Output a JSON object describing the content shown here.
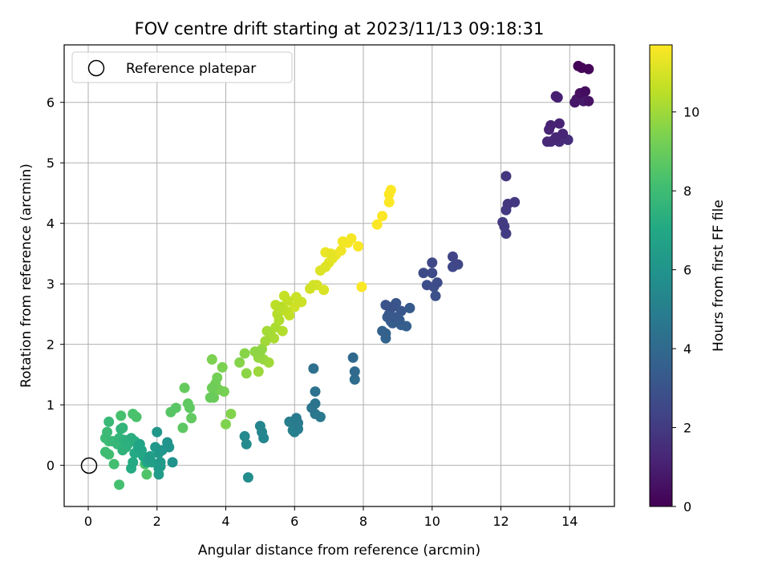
{
  "chart_data": {
    "type": "scatter",
    "title": "FOV centre drift starting at 2023/11/13 09:18:31",
    "xlabel": "Angular distance from reference (arcmin)",
    "ylabel": "Rotation from reference (arcmin)",
    "xlim": [
      -0.7,
      15.3
    ],
    "ylim": [
      -0.68,
      6.95
    ],
    "xticks": [
      0,
      2,
      4,
      6,
      8,
      10,
      12,
      14
    ],
    "yticks": [
      0,
      1,
      2,
      3,
      4,
      5,
      6
    ],
    "grid": true,
    "legend": {
      "location": "upper-left",
      "entries": [
        "Reference platepar"
      ]
    },
    "reference_point": {
      "x": 0,
      "y": 0,
      "marker": "open-circle"
    },
    "colorbar": {
      "label": "Hours from first FF file",
      "colormap": "viridis",
      "range": [
        0,
        11.7
      ],
      "ticks": [
        0,
        2,
        4,
        6,
        8,
        10
      ]
    },
    "series": [
      {
        "color_value": "hours",
        "points": [
          [
            14.25,
            6.6,
            0.1
          ],
          [
            14.55,
            6.55,
            0.2
          ],
          [
            14.35,
            6.57,
            0.3
          ],
          [
            14.45,
            6.18,
            0.4
          ],
          [
            14.3,
            6.15,
            0.5
          ],
          [
            14.55,
            6.02,
            0.6
          ],
          [
            14.15,
            6.0,
            0.7
          ],
          [
            14.2,
            6.05,
            0.8
          ],
          [
            14.4,
            6.02,
            0.9
          ],
          [
            13.6,
            6.1,
            1.0
          ],
          [
            13.65,
            6.08,
            1.05
          ],
          [
            13.45,
            5.62,
            1.1
          ],
          [
            13.7,
            5.65,
            1.15
          ],
          [
            13.4,
            5.55,
            1.2
          ],
          [
            13.8,
            5.48,
            1.25
          ],
          [
            13.6,
            5.42,
            1.3
          ],
          [
            13.35,
            5.35,
            1.35
          ],
          [
            13.55,
            5.38,
            1.4
          ],
          [
            13.7,
            5.35,
            1.45
          ],
          [
            13.45,
            5.35,
            1.5
          ],
          [
            13.95,
            5.38,
            1.55
          ],
          [
            12.15,
            4.78,
            1.8
          ],
          [
            12.2,
            4.32,
            1.85
          ],
          [
            12.4,
            4.35,
            1.9
          ],
          [
            12.15,
            4.22,
            1.95
          ],
          [
            12.05,
            4.02,
            2.0
          ],
          [
            12.1,
            3.95,
            2.05
          ],
          [
            12.15,
            3.83,
            2.1
          ],
          [
            10.6,
            3.45,
            2.4
          ],
          [
            10.75,
            3.32,
            2.45
          ],
          [
            10.6,
            3.28,
            2.5
          ],
          [
            10.0,
            3.35,
            2.55
          ],
          [
            9.75,
            3.18,
            2.6
          ],
          [
            10.0,
            3.18,
            2.65
          ],
          [
            10.15,
            3.02,
            2.7
          ],
          [
            9.85,
            2.98,
            2.75
          ],
          [
            10.05,
            2.95,
            2.8
          ],
          [
            10.1,
            2.8,
            2.85
          ],
          [
            8.65,
            2.65,
            3.0
          ],
          [
            8.85,
            2.62,
            3.05
          ],
          [
            8.95,
            2.68,
            3.1
          ],
          [
            9.1,
            2.55,
            3.15
          ],
          [
            8.75,
            2.5,
            3.2
          ],
          [
            8.9,
            2.45,
            3.25
          ],
          [
            9.35,
            2.6,
            3.3
          ],
          [
            8.7,
            2.45,
            3.35
          ],
          [
            9.05,
            2.4,
            3.4
          ],
          [
            8.85,
            2.35,
            3.45
          ],
          [
            9.1,
            2.32,
            3.5
          ],
          [
            9.25,
            2.3,
            3.55
          ],
          [
            8.8,
            2.38,
            3.6
          ],
          [
            8.55,
            2.22,
            3.65
          ],
          [
            8.65,
            2.18,
            3.7
          ],
          [
            8.65,
            2.1,
            3.75
          ],
          [
            7.7,
            1.78,
            4.0
          ],
          [
            7.75,
            1.55,
            4.05
          ],
          [
            7.75,
            1.42,
            4.1
          ],
          [
            6.55,
            1.6,
            4.3
          ],
          [
            6.6,
            1.22,
            4.4
          ],
          [
            6.6,
            1.02,
            4.5
          ],
          [
            6.5,
            0.95,
            4.6
          ],
          [
            6.6,
            0.85,
            4.65
          ],
          [
            6.75,
            0.8,
            4.7
          ],
          [
            6.05,
            0.78,
            4.8
          ],
          [
            6.1,
            0.7,
            4.85
          ],
          [
            5.85,
            0.72,
            4.9
          ],
          [
            6.1,
            0.6,
            4.95
          ],
          [
            6.0,
            0.55,
            5.0
          ],
          [
            5.95,
            0.58,
            5.05
          ],
          [
            5.0,
            0.65,
            5.3
          ],
          [
            5.05,
            0.55,
            5.35
          ],
          [
            5.1,
            0.45,
            5.4
          ],
          [
            4.55,
            0.48,
            5.5
          ],
          [
            4.6,
            0.35,
            5.55
          ],
          [
            4.65,
            -0.2,
            5.6
          ],
          [
            2.45,
            0.05,
            5.9
          ],
          [
            2.3,
            0.38,
            6.0
          ],
          [
            2.35,
            0.3,
            6.05
          ],
          [
            2.15,
            0.25,
            6.1
          ],
          [
            2.0,
            0.55,
            6.15
          ],
          [
            1.95,
            0.3,
            6.2
          ],
          [
            2.05,
            0.2,
            6.25
          ],
          [
            2.1,
            0.05,
            6.3
          ],
          [
            2.05,
            -0.05,
            6.35
          ],
          [
            2.05,
            -0.15,
            6.4
          ],
          [
            2.1,
            -0.02,
            6.45
          ],
          [
            1.8,
            0.15,
            6.5
          ],
          [
            1.75,
            0.1,
            6.55
          ],
          [
            1.85,
            0.05,
            6.6
          ],
          [
            1.5,
            0.35,
            6.8
          ],
          [
            1.45,
            0.3,
            6.85
          ],
          [
            1.55,
            0.25,
            6.9
          ],
          [
            1.6,
            0.15,
            6.95
          ],
          [
            1.7,
            0.05,
            7.0
          ],
          [
            1.35,
            0.2,
            7.05
          ],
          [
            1.3,
            0.05,
            7.1
          ],
          [
            1.25,
            -0.05,
            7.15
          ],
          [
            1.35,
            0.4,
            7.3
          ],
          [
            1.25,
            0.45,
            7.35
          ],
          [
            1.15,
            0.35,
            7.4
          ],
          [
            1.05,
            0.42,
            7.45
          ],
          [
            1.1,
            0.3,
            7.5
          ],
          [
            1.0,
            0.25,
            7.55
          ],
          [
            0.95,
            0.6,
            7.6
          ],
          [
            1.0,
            0.62,
            7.65
          ],
          [
            0.9,
            0.45,
            7.7
          ],
          [
            0.85,
            0.35,
            7.75
          ],
          [
            0.7,
            0.4,
            7.8
          ],
          [
            0.6,
            0.72,
            7.85
          ],
          [
            0.55,
            0.55,
            7.9
          ],
          [
            0.5,
            0.45,
            7.95
          ],
          [
            0.6,
            0.4,
            8.0
          ],
          [
            0.5,
            0.22,
            8.05
          ],
          [
            0.6,
            0.18,
            8.1
          ],
          [
            0.75,
            0.02,
            8.15
          ],
          [
            0.9,
            -0.32,
            8.2
          ],
          [
            0.95,
            0.82,
            8.25
          ],
          [
            1.3,
            0.85,
            8.3
          ],
          [
            1.4,
            0.8,
            8.35
          ],
          [
            1.65,
            0.02,
            8.4
          ],
          [
            1.7,
            -0.15,
            8.45
          ],
          [
            2.4,
            0.88,
            8.6
          ],
          [
            2.55,
            0.95,
            8.65
          ],
          [
            2.75,
            0.62,
            8.7
          ],
          [
            2.95,
            0.95,
            8.75
          ],
          [
            2.9,
            1.02,
            8.8
          ],
          [
            3.0,
            0.78,
            8.85
          ],
          [
            2.8,
            1.28,
            8.9
          ],
          [
            3.55,
            1.12,
            9.0
          ],
          [
            3.65,
            1.12,
            9.05
          ],
          [
            3.6,
            1.28,
            9.1
          ],
          [
            3.7,
            1.35,
            9.15
          ],
          [
            3.75,
            1.45,
            9.2
          ],
          [
            3.8,
            1.25,
            9.25
          ],
          [
            3.95,
            1.22,
            9.3
          ],
          [
            3.9,
            1.62,
            9.35
          ],
          [
            3.6,
            1.75,
            9.4
          ],
          [
            4.0,
            0.68,
            9.45
          ],
          [
            4.15,
            0.85,
            9.5
          ],
          [
            4.4,
            1.7,
            9.55
          ],
          [
            4.55,
            1.85,
            9.6
          ],
          [
            4.6,
            1.52,
            9.65
          ],
          [
            4.85,
            1.88,
            9.7
          ],
          [
            5.0,
            1.88,
            9.75
          ],
          [
            4.95,
            1.78,
            9.8
          ],
          [
            5.05,
            1.92,
            9.85
          ],
          [
            5.1,
            1.75,
            9.9
          ],
          [
            4.95,
            1.55,
            9.95
          ],
          [
            5.25,
            1.7,
            10.0
          ],
          [
            5.15,
            2.05,
            10.05
          ],
          [
            5.2,
            2.22,
            10.1
          ],
          [
            5.3,
            2.15,
            10.15
          ],
          [
            5.4,
            2.1,
            10.2
          ],
          [
            5.45,
            2.28,
            10.25
          ],
          [
            5.55,
            2.4,
            10.3
          ],
          [
            5.65,
            2.22,
            10.35
          ],
          [
            5.5,
            2.5,
            10.4
          ],
          [
            5.6,
            2.62,
            10.45
          ],
          [
            5.45,
            2.65,
            10.5
          ],
          [
            5.75,
            2.55,
            10.55
          ],
          [
            5.85,
            2.48,
            10.6
          ],
          [
            5.8,
            2.72,
            10.65
          ],
          [
            5.7,
            2.8,
            10.7
          ],
          [
            6.05,
            2.78,
            10.75
          ],
          [
            6.2,
            2.7,
            10.8
          ],
          [
            6.0,
            2.62,
            10.85
          ],
          [
            6.45,
            2.92,
            10.9
          ],
          [
            6.55,
            2.98,
            10.95
          ],
          [
            6.65,
            2.98,
            11.0
          ],
          [
            6.85,
            2.9,
            11.05
          ],
          [
            6.75,
            3.22,
            11.1
          ],
          [
            6.9,
            3.28,
            11.15
          ],
          [
            7.0,
            3.35,
            11.2
          ],
          [
            7.1,
            3.42,
            11.25
          ],
          [
            7.05,
            3.5,
            11.3
          ],
          [
            6.9,
            3.52,
            11.35
          ],
          [
            7.2,
            3.48,
            11.4
          ],
          [
            7.35,
            3.55,
            11.45
          ],
          [
            7.4,
            3.7,
            11.5
          ],
          [
            7.65,
            3.75,
            11.55
          ],
          [
            7.55,
            3.68,
            11.6
          ],
          [
            7.85,
            3.62,
            11.62
          ],
          [
            7.95,
            2.95,
            11.64
          ],
          [
            8.4,
            3.98,
            11.66
          ],
          [
            8.55,
            4.12,
            11.67
          ],
          [
            8.75,
            4.35,
            11.68
          ],
          [
            8.75,
            4.48,
            11.69
          ],
          [
            8.8,
            4.55,
            11.7
          ]
        ]
      }
    ]
  }
}
